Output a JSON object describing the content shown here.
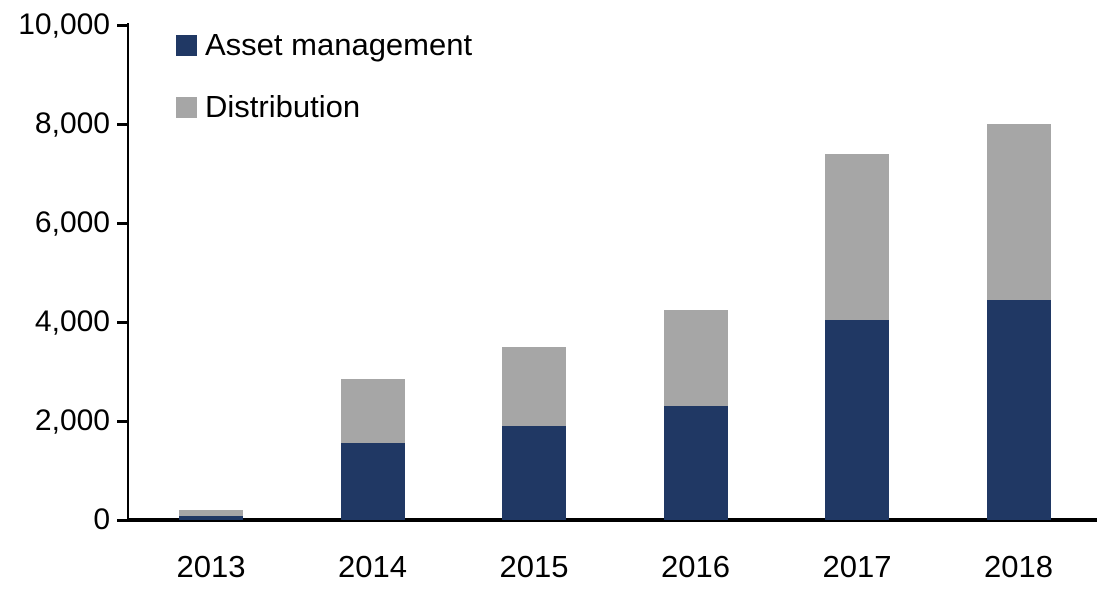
{
  "chart_data": {
    "type": "bar",
    "stacked": true,
    "title": "",
    "xlabel": "",
    "ylabel": "",
    "categories": [
      "2013",
      "2014",
      "2015",
      "2016",
      "2017",
      "2018"
    ],
    "series": [
      {
        "name": "Asset management",
        "color": "#203864",
        "values": [
          80,
          1550,
          1900,
          2300,
          4050,
          4450
        ]
      },
      {
        "name": "Distribution",
        "color": "#A6A6A6",
        "values": [
          120,
          1300,
          1600,
          1950,
          3350,
          3550
        ]
      }
    ],
    "totals": [
      200,
      2850,
      3500,
      4250,
      7400,
      8000
    ],
    "ylim": [
      0,
      10000
    ],
    "yticks": [
      0,
      2000,
      4000,
      6000,
      8000,
      10000
    ],
    "ytick_labels": [
      "0",
      "2,000",
      "4,000",
      "6,000",
      "8,000",
      "10,000"
    ],
    "grid": false,
    "legend_position": "top-left-inside",
    "axis_color": "#000000",
    "background": "#FFFFFF"
  }
}
